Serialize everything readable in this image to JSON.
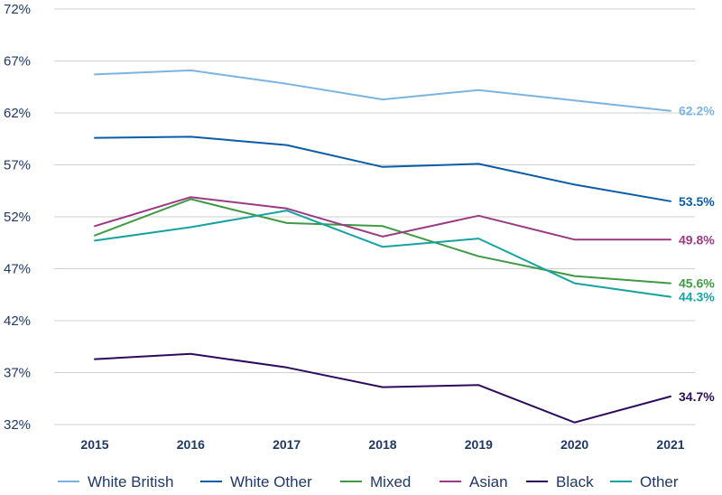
{
  "chart_data": {
    "type": "line",
    "title": "",
    "xlabel": "",
    "ylabel": "",
    "x": [
      2015,
      2016,
      2017,
      2018,
      2019,
      2020,
      2021
    ],
    "x_tick_labels": [
      "2015",
      "2016",
      "2017",
      "2018",
      "2019",
      "2020",
      "2021"
    ],
    "ylim": [
      32,
      72
    ],
    "y_ticks": [
      32,
      37,
      42,
      47,
      52,
      57,
      62,
      67,
      72
    ],
    "y_tick_labels": [
      "32%",
      "37%",
      "42%",
      "47%",
      "52%",
      "57%",
      "62%",
      "67%",
      "72%"
    ],
    "grid": "horizontal",
    "legend_position": "bottom",
    "series": [
      {
        "name": "White British",
        "color": "#7ab4e2",
        "values": [
          65.7,
          66.1,
          64.8,
          63.3,
          64.2,
          63.2,
          62.2
        ],
        "end_label": "62.2%"
      },
      {
        "name": "White Other",
        "color": "#0b5ca6",
        "values": [
          59.6,
          59.7,
          58.9,
          56.8,
          57.1,
          55.1,
          53.5
        ],
        "end_label": "53.5%"
      },
      {
        "name": "Mixed",
        "color": "#3f9a43",
        "values": [
          50.2,
          53.7,
          51.4,
          51.1,
          48.2,
          46.3,
          45.6
        ],
        "end_label": "45.6%"
      },
      {
        "name": "Asian",
        "color": "#9b3a84",
        "values": [
          51.1,
          53.9,
          52.8,
          50.1,
          52.1,
          49.8,
          49.8
        ],
        "end_label": "49.8%"
      },
      {
        "name": "Black",
        "color": "#2e0a5e",
        "values": [
          38.3,
          38.8,
          37.5,
          35.6,
          35.8,
          32.2,
          34.7
        ],
        "end_label": "34.7%"
      },
      {
        "name": "Other",
        "color": "#17a2a2",
        "values": [
          49.7,
          51.0,
          52.6,
          49.1,
          49.9,
          45.6,
          44.3
        ],
        "end_label": "44.3%"
      }
    ]
  }
}
